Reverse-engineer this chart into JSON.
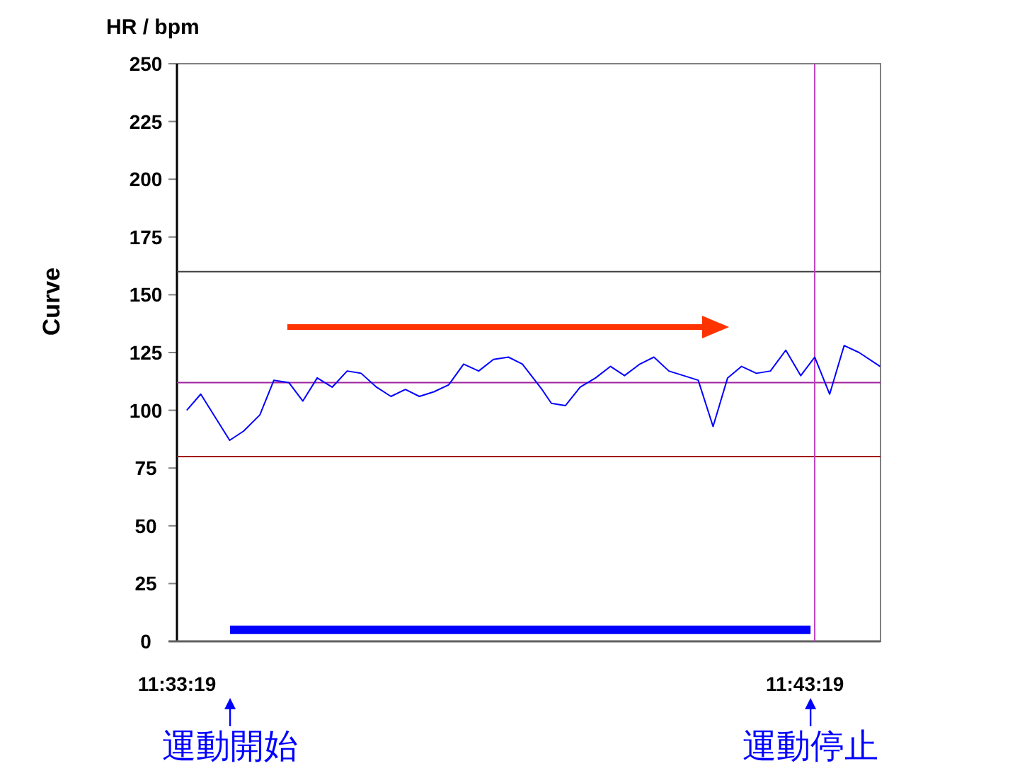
{
  "chart_data": {
    "type": "line",
    "title": "HR / bpm",
    "ylabel": "Curve",
    "x": [
      11.55788,
      11.56159,
      11.56927,
      11.57298,
      11.57729,
      11.581,
      11.58497,
      11.58869,
      11.59251,
      11.59648,
      11.60045,
      11.60416,
      11.60825,
      11.61207,
      11.6159,
      11.61961,
      11.62347,
      11.6274,
      11.63137,
      11.63535,
      11.63928,
      11.64325,
      11.64696,
      11.65216,
      11.65465,
      11.65836,
      11.66229,
      11.66638,
      11.67035,
      11.67406,
      11.67814,
      11.68186,
      11.68583,
      11.69362,
      11.69756,
      11.70142,
      11.70513,
      11.70906,
      11.71278,
      11.71686,
      11.72083,
      11.72454,
      11.72851,
      11.73234,
      11.73631,
      11.74188
    ],
    "xlim": [
      11.55528,
      11.742
    ],
    "xticks": [
      {
        "value": 11.55528,
        "label": "11:33:19"
      },
      {
        "value": 11.72194,
        "label": "11:43:19"
      }
    ],
    "ylim": [
      0,
      250
    ],
    "yticks": [
      0,
      25,
      50,
      75,
      100,
      125,
      150,
      175,
      200,
      225,
      250
    ],
    "grid": false,
    "series": [
      {
        "color": "#0000ff",
        "values": [
          100,
          107,
          87,
          91,
          98,
          113,
          112,
          104,
          114,
          110,
          117,
          116,
          110,
          106,
          109,
          106,
          108,
          111,
          120,
          117,
          122,
          123,
          120,
          109,
          103,
          102,
          110,
          114,
          119,
          115,
          120,
          123,
          117,
          113,
          93,
          114,
          119,
          116,
          117,
          126,
          115,
          123,
          107,
          128,
          125,
          119
        ]
      },
      {
        "color": "#0000ff",
        "x": [
          11.56938,
          11.72343
        ],
        "values": [
          5,
          5
        ]
      }
    ],
    "ref_lines": [
      {
        "axis": "y",
        "value": 160,
        "color": "#404040"
      },
      {
        "axis": "y",
        "value": 112,
        "color": "#a020a0"
      },
      {
        "axis": "y",
        "value": 80,
        "color": "#a01010"
      },
      {
        "axis": "x",
        "value": 11.72454,
        "color": "#c040c0"
      }
    ],
    "annotations": [
      "運動開始",
      "運動停止"
    ]
  }
}
